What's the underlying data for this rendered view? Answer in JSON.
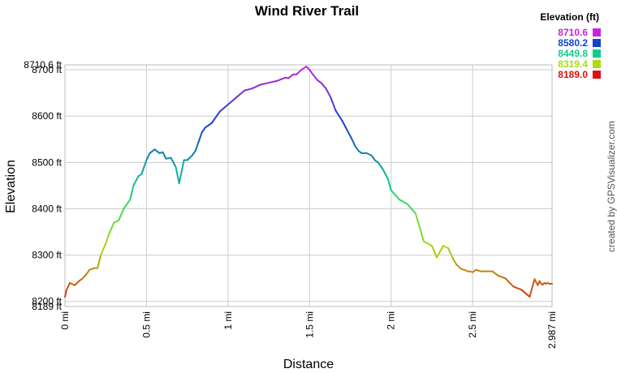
{
  "chart_data": {
    "type": "line",
    "title": "Wind River Trail",
    "xlabel": "Distance",
    "ylabel": "Elevation",
    "xlim": [
      0,
      2.987
    ],
    "ylim": [
      8189.0,
      8710.6
    ],
    "grid": true,
    "x_ticks": [
      {
        "value": 0,
        "label": "0 mi"
      },
      {
        "value": 0.5,
        "label": "0.5 mi"
      },
      {
        "value": 1,
        "label": "1 mi"
      },
      {
        "value": 1.5,
        "label": "1.5 mi"
      },
      {
        "value": 2,
        "label": "2 mi"
      },
      {
        "value": 2.5,
        "label": "2.5 mi"
      },
      {
        "value": 2.987,
        "label": "2.987 mi"
      }
    ],
    "y_ticks": [
      {
        "value": 8189.0,
        "label": "8189 ft"
      },
      {
        "value": 8200,
        "label": "8200 ft"
      },
      {
        "value": 8300,
        "label": "8300 ft"
      },
      {
        "value": 8400,
        "label": "8400 ft"
      },
      {
        "value": 8500,
        "label": "8500 ft"
      },
      {
        "value": 8600,
        "label": "8600 ft"
      },
      {
        "value": 8700,
        "label": "8700 ft"
      },
      {
        "value": 8710.6,
        "label": "8710.6 ft"
      }
    ],
    "legend": {
      "title": "Elevation (ft)",
      "position": "top-right",
      "items": [
        {
          "label": "8710.6",
          "color": "#cc22dd"
        },
        {
          "label": "8580.2",
          "color": "#1144cc"
        },
        {
          "label": "8449.8",
          "color": "#11cc88"
        },
        {
          "label": "8319.4",
          "color": "#aadd11"
        },
        {
          "label": "8189.0",
          "color": "#dd1111"
        }
      ]
    },
    "x": [
      0.0,
      0.01,
      0.03,
      0.06,
      0.09,
      0.11,
      0.13,
      0.15,
      0.18,
      0.2,
      0.22,
      0.25,
      0.27,
      0.3,
      0.33,
      0.36,
      0.4,
      0.42,
      0.45,
      0.47,
      0.5,
      0.52,
      0.55,
      0.58,
      0.6,
      0.62,
      0.65,
      0.68,
      0.7,
      0.73,
      0.75,
      0.78,
      0.8,
      0.82,
      0.84,
      0.86,
      0.88,
      0.9,
      0.95,
      1.0,
      1.05,
      1.1,
      1.15,
      1.2,
      1.25,
      1.3,
      1.33,
      1.35,
      1.37,
      1.4,
      1.42,
      1.45,
      1.48,
      1.5,
      1.52,
      1.55,
      1.57,
      1.6,
      1.63,
      1.66,
      1.7,
      1.73,
      1.76,
      1.78,
      1.8,
      1.82,
      1.85,
      1.88,
      1.9,
      1.92,
      1.95,
      1.98,
      2.0,
      2.05,
      2.1,
      2.15,
      2.2,
      2.25,
      2.28,
      2.32,
      2.35,
      2.38,
      2.4,
      2.43,
      2.45,
      2.47,
      2.48,
      2.5,
      2.52,
      2.55,
      2.58,
      2.62,
      2.66,
      2.7,
      2.75,
      2.8,
      2.85,
      2.88,
      2.9,
      2.91,
      2.92,
      2.93,
      2.94,
      2.95,
      2.96,
      2.97,
      2.987
    ],
    "y": [
      8210,
      8225,
      8240,
      8235,
      8245,
      8250,
      8258,
      8268,
      8272,
      8272,
      8300,
      8325,
      8345,
      8370,
      8375,
      8400,
      8420,
      8450,
      8470,
      8475,
      8505,
      8520,
      8528,
      8520,
      8522,
      8508,
      8510,
      8490,
      8455,
      8505,
      8505,
      8515,
      8525,
      8545,
      8565,
      8575,
      8580,
      8585,
      8610,
      8625,
      8640,
      8655,
      8660,
      8668,
      8672,
      8676,
      8680,
      8683,
      8682,
      8690,
      8690,
      8700,
      8707,
      8700,
      8690,
      8677,
      8672,
      8660,
      8640,
      8612,
      8590,
      8570,
      8550,
      8535,
      8525,
      8520,
      8520,
      8515,
      8505,
      8500,
      8485,
      8465,
      8440,
      8420,
      8410,
      8390,
      8330,
      8320,
      8295,
      8320,
      8315,
      8292,
      8280,
      8270,
      8268,
      8265,
      8265,
      8263,
      8268,
      8265,
      8265,
      8265,
      8255,
      8250,
      8232,
      8225,
      8210,
      8248,
      8235,
      8244,
      8238,
      8236,
      8240,
      8238,
      8240,
      8238,
      8238
    ]
  },
  "credit": "created by GPSVisualizer.com"
}
